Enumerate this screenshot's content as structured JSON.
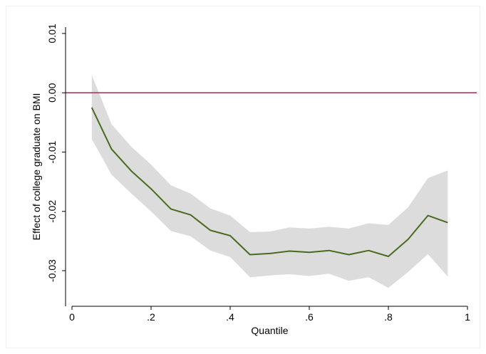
{
  "chart_data": {
    "type": "line",
    "xlabel": "Quantile",
    "ylabel": "Effect of college graduate on BMI",
    "xlim": [
      0,
      1
    ],
    "ylim": [
      -0.034,
      0.012
    ],
    "xticks": [
      0,
      0.2,
      0.4,
      0.6,
      0.8,
      1
    ],
    "xtick_labels": [
      "0",
      ".2",
      ".4",
      ".6",
      ".8",
      "1"
    ],
    "yticks": [
      0.01,
      0.0,
      -0.01,
      -0.02,
      -0.03
    ],
    "ytick_labels": [
      "0.01",
      "0.00",
      "-0.01",
      "-0.02",
      "-0.03"
    ],
    "reference_line": {
      "y": 0.0,
      "color": "#a0304f"
    },
    "series": [
      {
        "type": "line",
        "color": "#4a6b1f",
        "x": [
          0.05,
          0.1,
          0.15,
          0.2,
          0.25,
          0.3,
          0.35,
          0.4,
          0.45,
          0.5,
          0.55,
          0.6,
          0.65,
          0.7,
          0.75,
          0.8,
          0.85,
          0.9,
          0.95
        ],
        "y": [
          -0.0025,
          -0.0095,
          -0.0132,
          -0.0162,
          -0.0196,
          -0.0206,
          -0.0232,
          -0.0241,
          -0.0273,
          -0.0271,
          -0.0267,
          -0.0269,
          -0.0266,
          -0.0273,
          -0.0266,
          -0.0276,
          -0.0247,
          -0.0207,
          -0.0219
        ]
      }
    ],
    "confidence_band": {
      "color": "#dcdcdc",
      "x": [
        0.05,
        0.1,
        0.15,
        0.2,
        0.25,
        0.3,
        0.35,
        0.4,
        0.45,
        0.5,
        0.55,
        0.6,
        0.65,
        0.7,
        0.75,
        0.8,
        0.85,
        0.9,
        0.95
      ],
      "upper": [
        0.003,
        -0.0053,
        -0.0091,
        -0.0121,
        -0.0156,
        -0.017,
        -0.0195,
        -0.0207,
        -0.0235,
        -0.0234,
        -0.0227,
        -0.0229,
        -0.0226,
        -0.0229,
        -0.022,
        -0.0223,
        -0.0193,
        -0.0144,
        -0.0131
      ],
      "lower": [
        -0.0078,
        -0.0138,
        -0.017,
        -0.02,
        -0.0233,
        -0.0242,
        -0.0266,
        -0.0277,
        -0.0311,
        -0.0308,
        -0.0306,
        -0.0309,
        -0.0305,
        -0.0317,
        -0.0311,
        -0.0329,
        -0.0302,
        -0.0272,
        -0.031
      ]
    },
    "grid": false
  }
}
